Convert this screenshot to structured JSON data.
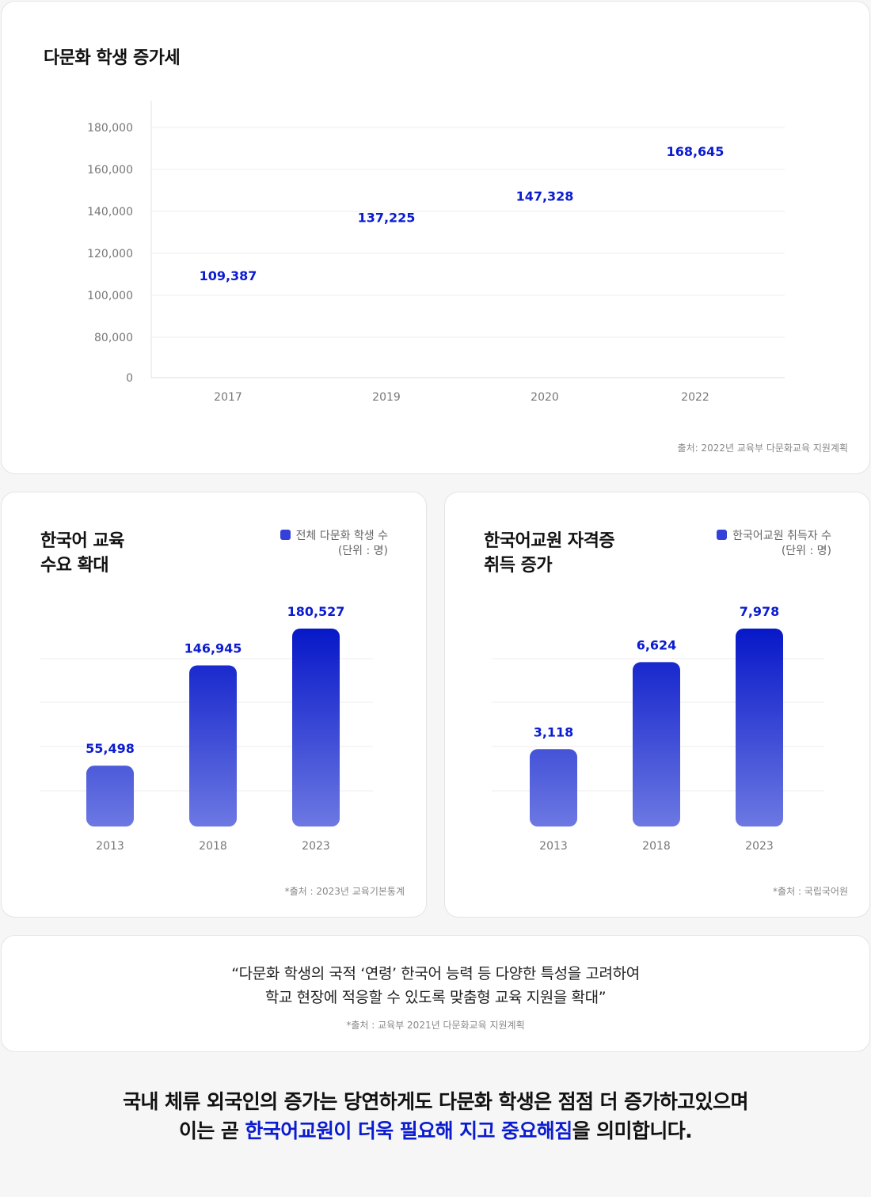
{
  "colors": {
    "accent": "#0a1bd0",
    "bar_top": "#0617c8",
    "bar_bottom": "#6c78e2",
    "legend": "#3440d8"
  },
  "top_card": {
    "title": "다문화 학생 증가세",
    "source": "출처: 2022년 교육부 다문화교육 지원계획"
  },
  "left_card": {
    "title_line1": "한국어 교육",
    "title_line2": "수요 확대",
    "legend": "전체 다문화 학생 수",
    "unit": "(단위 : 명)",
    "source": "*출처 : 2023년 교육기본통계"
  },
  "right_card": {
    "title_line1": "한국어교원 자격증",
    "title_line2": "취득 증가",
    "legend": "한국어교원 취득자 수",
    "unit": "(단위 : 명)",
    "source": "*출처 : 국립국어원"
  },
  "quote": {
    "line1": "“다문화 학생의 국적 ‘연령’ 한국어 능력 등 다양한 특성을 고려하여",
    "line2": "학교 현장에 적응할 수 있도록 맞춤형 교육 지원을 확대”",
    "source": "*출처 : 교육부 2021년 다문화교육 지원계획"
  },
  "bottom": {
    "line1": "국내 체류 외국인의 증가는 당연하게도 다문화 학생은 점점 더 증가하고있으며",
    "line2_before": "이는 곧 ",
    "line2_highlight": "한국어교원이 더욱 필요해 지고 중요해짐",
    "line2_after": "을 의미합니다."
  },
  "chart_data": [
    {
      "type": "scatter",
      "title": "다문화 학생 증가세",
      "categories": [
        "2017",
        "2019",
        "2020",
        "2022"
      ],
      "values": [
        109387,
        137225,
        147328,
        168645
      ],
      "labels": [
        "109,387",
        "137,225",
        "147,328",
        "168,645"
      ],
      "y_ticks": [
        "0",
        "80,000",
        "100,000",
        "120,000",
        "140,000",
        "160,000",
        "180,000"
      ],
      "ylim": [
        0,
        180000
      ],
      "grid": true
    },
    {
      "type": "bar",
      "title": "한국어 교육 수요 확대",
      "categories": [
        "2013",
        "2018",
        "2023"
      ],
      "values": [
        55498,
        146945,
        180527
      ],
      "labels": [
        "55,498",
        "146,945",
        "180,527"
      ],
      "legend": "top-right",
      "grid": true
    },
    {
      "type": "bar",
      "title": "한국어교원 자격증 취득 증가",
      "categories": [
        "2013",
        "2018",
        "2023"
      ],
      "values": [
        3118,
        6624,
        7978
      ],
      "labels": [
        "3,118",
        "6,624",
        "7,978"
      ],
      "legend": "top-right",
      "grid": true
    }
  ]
}
